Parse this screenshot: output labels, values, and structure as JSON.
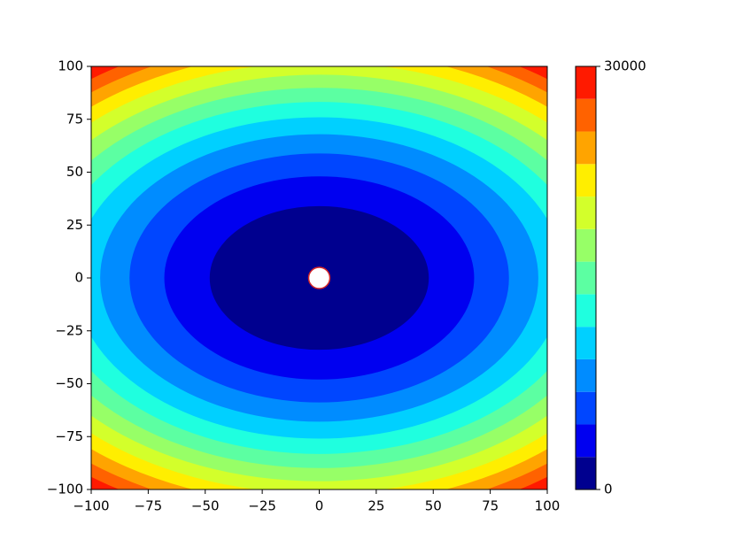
{
  "chart_data": {
    "type": "contourf",
    "xlim": [
      -100,
      100
    ],
    "ylim": [
      -100,
      100
    ],
    "xticks": [
      {
        "value": -100,
        "label": "−100"
      },
      {
        "value": -75,
        "label": "−75"
      },
      {
        "value": -50,
        "label": "−50"
      },
      {
        "value": -25,
        "label": "−25"
      },
      0,
      25,
      50,
      75,
      100
    ],
    "yticks": [
      {
        "value": -100,
        "label": "−100"
      },
      {
        "value": -75,
        "label": "−75"
      },
      {
        "value": -50,
        "label": "−50"
      },
      {
        "value": -25,
        "label": "−25"
      },
      0,
      25,
      50,
      75,
      100
    ],
    "levels": [
      0,
      2307.7,
      4615.4,
      6923.1,
      9230.8,
      11538.5,
      13846.2,
      16153.8,
      18461.5,
      20769.2,
      23076.9,
      25384.6,
      27692.3,
      30000
    ],
    "colors": [
      "#00008f",
      "#0000f0",
      "#0046ff",
      "#008cff",
      "#00d0ff",
      "#1fffdf",
      "#5cffa2",
      "#97ff67",
      "#d3ff2b",
      "#ffee00",
      "#ffa400",
      "#ff6200",
      "#ff1a00",
      "#9e0000"
    ],
    "colorbar_lim": [
      0,
      30000
    ],
    "colorbar_ticks": [
      0,
      30000
    ],
    "marker": {
      "x": 0,
      "y": 0,
      "color": "#ffffff",
      "edge_color": "#d62728"
    }
  }
}
